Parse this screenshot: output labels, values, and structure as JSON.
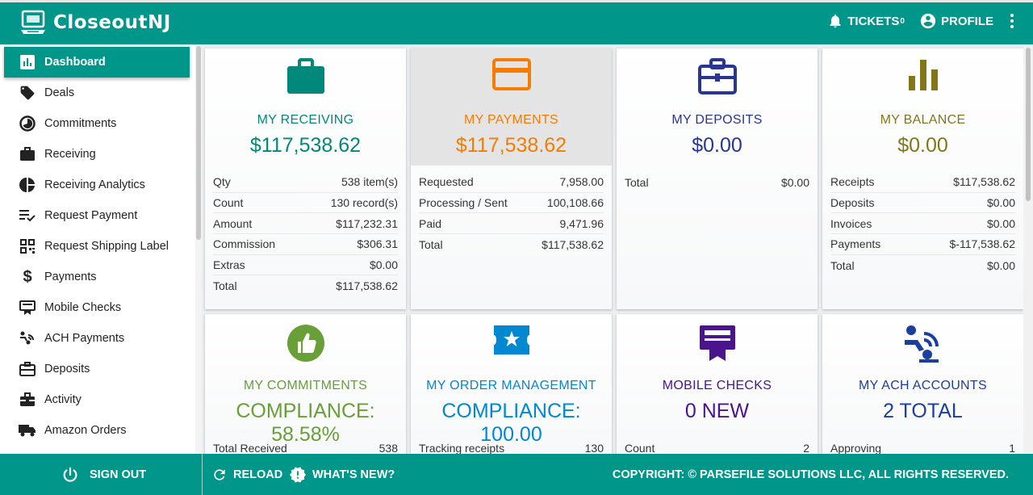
{
  "header": {
    "brand": "CloseoutNJ",
    "tickets_label": "TICKETS",
    "tickets_count": "0",
    "profile_label": "PROFILE"
  },
  "sidebar": {
    "items": [
      {
        "label": "Dashboard",
        "icon": "bar-chart-icon"
      },
      {
        "label": "Deals",
        "icon": "tags-icon"
      },
      {
        "label": "Commitments",
        "icon": "pie-circle-icon"
      },
      {
        "label": "Receiving",
        "icon": "briefcase-icon"
      },
      {
        "label": "Receiving Analytics",
        "icon": "pie-chart-icon"
      },
      {
        "label": "Request Payment",
        "icon": "list-check-icon"
      },
      {
        "label": "Request Shipping Label",
        "icon": "qr-code-icon"
      },
      {
        "label": "Payments",
        "icon": "dollar-icon"
      },
      {
        "label": "Mobile Checks",
        "icon": "check-device-icon"
      },
      {
        "label": "ACH Payments",
        "icon": "ach-icon"
      },
      {
        "label": "Deposits",
        "icon": "briefcase-outline-icon"
      },
      {
        "label": "Activity",
        "icon": "toolbox-icon"
      },
      {
        "label": "Amazon Orders",
        "icon": "truck-icon"
      }
    ]
  },
  "cards": {
    "receiving": {
      "title": "MY RECEIVING",
      "value": "$117,538.62",
      "color": "#00897b",
      "rows": [
        {
          "label": "Qty",
          "value": "538 item(s)"
        },
        {
          "label": "Count",
          "value": "130 record(s)"
        },
        {
          "label": "Amount",
          "value": "$117,232.31"
        },
        {
          "label": "Commission",
          "value": "$306.31"
        },
        {
          "label": "Extras",
          "value": "$0.00"
        },
        {
          "label": "Total",
          "value": "$117,538.62"
        }
      ]
    },
    "payments": {
      "title": "MY PAYMENTS",
      "value": "$117,538.62",
      "color": "#f57c00",
      "rows": [
        {
          "label": "Requested",
          "value": "7,958.00"
        },
        {
          "label": "Processing / Sent",
          "value": "100,108.66"
        },
        {
          "label": "Paid",
          "value": "9,471.96"
        },
        {
          "label": "Total",
          "value": "$117,538.62"
        }
      ]
    },
    "deposits": {
      "title": "MY DEPOSITS",
      "value": "$0.00",
      "color": "#283593",
      "rows": [
        {
          "label": "Total",
          "value": "$0.00"
        }
      ]
    },
    "balance": {
      "title": "MY BALANCE",
      "value": "$0.00",
      "color": "#827717",
      "rows": [
        {
          "label": "Receipts",
          "value": "$117,538.62"
        },
        {
          "label": "Deposits",
          "value": "$0.00"
        },
        {
          "label": "Invoices",
          "value": "$0.00"
        },
        {
          "label": "Payments",
          "value": "$-117,538.62"
        },
        {
          "label": "Total",
          "value": "$0.00"
        }
      ]
    },
    "commitments": {
      "title": "MY COMMITMENTS",
      "value": "COMPLIANCE: 58.58%",
      "color": "#689f38",
      "rows": [
        {
          "label": "Total Received",
          "value": "538"
        }
      ]
    },
    "order_management": {
      "title": "MY ORDER MANAGEMENT",
      "value": "COMPLIANCE: 100.00",
      "color": "#0288d1",
      "rows": [
        {
          "label": "Tracking receipts",
          "value": "130"
        }
      ]
    },
    "mobile_checks": {
      "title": "MOBILE CHECKS",
      "value": "0 NEW",
      "color": "#4a148c",
      "rows": [
        {
          "label": "Count",
          "value": "2"
        }
      ]
    },
    "ach_accounts": {
      "title": "MY ACH ACCOUNTS",
      "value": "2 TOTAL",
      "color": "#1a3f9e",
      "rows": [
        {
          "label": "Approving",
          "value": "1"
        }
      ]
    }
  },
  "footer": {
    "sign_out": "SIGN OUT",
    "reload": "RELOAD",
    "whats_new": "WHAT'S NEW?",
    "copyright": "COPYRIGHT: © PARSEFILE SOLUTIONS LLC, ALL RIGHTS RESERVED."
  }
}
